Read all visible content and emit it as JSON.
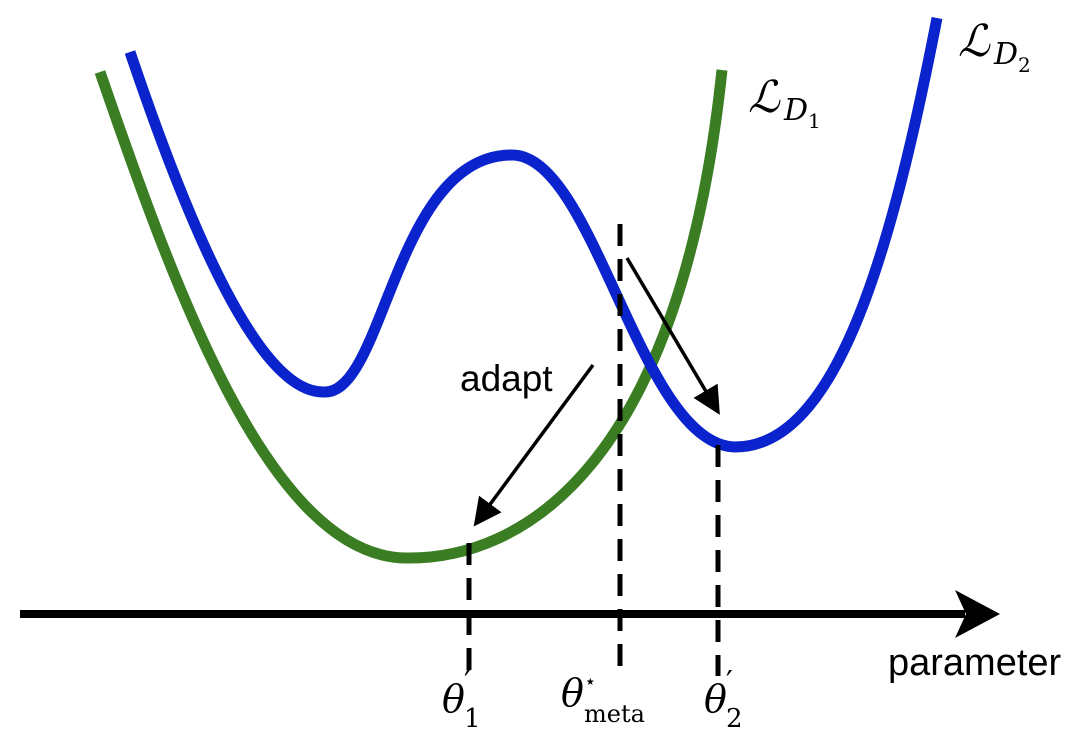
{
  "figure": {
    "axis_label": "parameter",
    "arrow_label": "adapt"
  },
  "curves": [
    {
      "name": "loss-d1",
      "symbol": "ℒ",
      "subscript": "D",
      "subsubscript": "1",
      "color": "#3a7d22"
    },
    {
      "name": "loss-d2",
      "symbol": "ℒ",
      "subscript": "D",
      "subsubscript": "2",
      "color": "#0a23cc"
    }
  ],
  "markers": [
    {
      "name": "theta-prime-1",
      "symbol": "θ",
      "mark": "′",
      "subscript": "1"
    },
    {
      "name": "theta-meta",
      "symbol": "θ",
      "mark": "⋆",
      "subscript": "meta"
    },
    {
      "name": "theta-prime-2",
      "symbol": "θ",
      "mark": "′",
      "subscript": "2"
    }
  ],
  "colors": {
    "axis": "#000000",
    "guide": "#000000",
    "text": "#000000"
  }
}
